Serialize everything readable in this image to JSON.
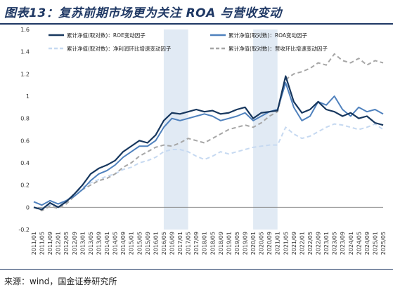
{
  "title": "图表13：复苏前期市场更为关注 ROA 与营收变动",
  "source": "来源：wind，国金证券研究所",
  "chart_data": {
    "type": "line",
    "ylim": [
      -0.2,
      1.6
    ],
    "yticks": [
      "-0.2",
      "0",
      "0.2",
      "0.4",
      "0.6",
      "0.8",
      "1",
      "1.2",
      "1.4",
      "1.6"
    ],
    "xticks": [
      "2011/01",
      "2011/05",
      "2011/09",
      "2012/01",
      "2012/05",
      "2012/09",
      "2013/01",
      "2013/05",
      "2013/09",
      "2014/01",
      "2014/05",
      "2014/09",
      "2015/01",
      "2015/05",
      "2015/09",
      "2016/01",
      "2016/05",
      "2016/09",
      "2017/01",
      "2017/05",
      "2017/09",
      "2018/01",
      "2018/05",
      "2018/09",
      "2019/01",
      "2019/05",
      "2019/09",
      "2020/01",
      "2020/05",
      "2020/09",
      "2021/01",
      "2021/05",
      "2021/09",
      "2022/01",
      "2022/05",
      "2022/09",
      "2023/01",
      "2023/05",
      "2023/09",
      "2024/01",
      "2024/05",
      "2024/09",
      "2025/01",
      "2025/05"
    ],
    "shaded_periods": [
      [
        "2016/05",
        "2017/05"
      ],
      [
        "2020/01",
        "2021/01"
      ]
    ],
    "legend_placement": "top",
    "series": [
      {
        "name": "累计净值(取对数)：ROE变动因子",
        "color": "#17375e",
        "style": "solid",
        "width": 2.2,
        "x": [
          "2011/01",
          "2011/05",
          "2011/09",
          "2012/01",
          "2012/05",
          "2012/09",
          "2013/01",
          "2013/05",
          "2013/09",
          "2014/01",
          "2014/05",
          "2014/09",
          "2015/01",
          "2015/05",
          "2015/09",
          "2016/01",
          "2016/05",
          "2016/09",
          "2017/01",
          "2017/05",
          "2017/09",
          "2018/01",
          "2018/05",
          "2018/09",
          "2019/01",
          "2019/05",
          "2019/09",
          "2020/01",
          "2020/05",
          "2020/09",
          "2021/01",
          "2021/05",
          "2021/09",
          "2022/01",
          "2022/05",
          "2022/09",
          "2023/01",
          "2023/05",
          "2023/09",
          "2024/01",
          "2024/05",
          "2024/09",
          "2025/01",
          "2025/05"
        ],
        "values": [
          0.0,
          -0.02,
          0.04,
          0.0,
          0.05,
          0.12,
          0.2,
          0.3,
          0.35,
          0.38,
          0.42,
          0.5,
          0.55,
          0.6,
          0.58,
          0.65,
          0.78,
          0.85,
          0.84,
          0.86,
          0.88,
          0.86,
          0.87,
          0.84,
          0.85,
          0.88,
          0.9,
          0.8,
          0.85,
          0.86,
          0.87,
          1.18,
          0.95,
          0.85,
          0.88,
          0.95,
          0.88,
          0.86,
          0.82,
          0.85,
          0.8,
          0.82,
          0.76,
          0.74
        ]
      },
      {
        "name": "累计净值(取对数)：ROA变动因子",
        "color": "#4f81bd",
        "style": "solid",
        "width": 2.0,
        "x": [
          "2011/01",
          "2011/05",
          "2011/09",
          "2012/01",
          "2012/05",
          "2012/09",
          "2013/01",
          "2013/05",
          "2013/09",
          "2014/01",
          "2014/05",
          "2014/09",
          "2015/01",
          "2015/05",
          "2015/09",
          "2016/01",
          "2016/05",
          "2016/09",
          "2017/01",
          "2017/05",
          "2017/09",
          "2018/01",
          "2018/05",
          "2018/09",
          "2019/01",
          "2019/05",
          "2019/09",
          "2020/01",
          "2020/05",
          "2020/09",
          "2021/01",
          "2021/05",
          "2021/09",
          "2022/01",
          "2022/05",
          "2022/09",
          "2023/01",
          "2023/05",
          "2023/09",
          "2024/01",
          "2024/05",
          "2024/09",
          "2025/01",
          "2025/05"
        ],
        "values": [
          0.05,
          0.02,
          0.06,
          0.03,
          0.06,
          0.1,
          0.16,
          0.24,
          0.3,
          0.33,
          0.38,
          0.45,
          0.5,
          0.55,
          0.55,
          0.6,
          0.72,
          0.8,
          0.78,
          0.8,
          0.82,
          0.84,
          0.82,
          0.78,
          0.8,
          0.82,
          0.85,
          0.78,
          0.82,
          0.86,
          0.88,
          1.12,
          0.9,
          0.78,
          0.82,
          0.95,
          0.92,
          1.0,
          0.88,
          0.82,
          0.9,
          0.86,
          0.88,
          0.84
        ]
      },
      {
        "name": "累计净值(取对数)：净利润环比增速变动因子",
        "color": "#c6d9f1",
        "style": "dashed",
        "width": 2.0,
        "x": [
          "2011/01",
          "2011/05",
          "2011/09",
          "2012/01",
          "2012/05",
          "2012/09",
          "2013/01",
          "2013/05",
          "2013/09",
          "2014/01",
          "2014/05",
          "2014/09",
          "2015/01",
          "2015/05",
          "2015/09",
          "2016/01",
          "2016/05",
          "2016/09",
          "2017/01",
          "2017/05",
          "2017/09",
          "2018/01",
          "2018/05",
          "2018/09",
          "2019/01",
          "2019/05",
          "2019/09",
          "2020/01",
          "2020/05",
          "2020/09",
          "2021/01",
          "2021/05",
          "2021/09",
          "2022/01",
          "2022/05",
          "2022/09",
          "2023/01",
          "2023/05",
          "2023/09",
          "2024/01",
          "2024/05",
          "2024/09",
          "2025/01",
          "2025/05"
        ],
        "values": [
          0.0,
          -0.01,
          0.02,
          0.01,
          0.06,
          0.12,
          0.18,
          0.22,
          0.25,
          0.28,
          0.3,
          0.34,
          0.36,
          0.4,
          0.42,
          0.45,
          0.5,
          0.52,
          0.52,
          0.5,
          0.46,
          0.43,
          0.46,
          0.5,
          0.48,
          0.5,
          0.52,
          0.54,
          0.55,
          0.56,
          0.56,
          0.72,
          0.66,
          0.62,
          0.64,
          0.68,
          0.72,
          0.75,
          0.74,
          0.72,
          0.7,
          0.72,
          0.75,
          0.7
        ]
      },
      {
        "name": "累计净值(取对数)：营收环比增速变动因子",
        "color": "#a6a6a6",
        "style": "dashed",
        "width": 2.0,
        "x": [
          "2011/01",
          "2011/05",
          "2011/09",
          "2012/01",
          "2012/05",
          "2012/09",
          "2013/01",
          "2013/05",
          "2013/09",
          "2014/01",
          "2014/05",
          "2014/09",
          "2015/01",
          "2015/05",
          "2015/09",
          "2016/01",
          "2016/05",
          "2016/09",
          "2017/01",
          "2017/05",
          "2017/09",
          "2018/01",
          "2018/05",
          "2018/09",
          "2019/01",
          "2019/05",
          "2019/09",
          "2020/01",
          "2020/05",
          "2020/09",
          "2021/01",
          "2021/05",
          "2021/09",
          "2022/01",
          "2022/05",
          "2022/09",
          "2023/01",
          "2023/05",
          "2023/09",
          "2024/01",
          "2024/05",
          "2024/09",
          "2025/01",
          "2025/05"
        ],
        "values": [
          0.0,
          -0.03,
          0.01,
          -0.01,
          0.03,
          0.1,
          0.16,
          0.2,
          0.24,
          0.26,
          0.3,
          0.36,
          0.4,
          0.46,
          0.5,
          0.54,
          0.56,
          0.55,
          0.58,
          0.62,
          0.6,
          0.58,
          0.62,
          0.66,
          0.7,
          0.72,
          0.74,
          0.72,
          0.76,
          0.82,
          0.86,
          1.15,
          1.2,
          1.22,
          1.25,
          1.3,
          1.28,
          1.38,
          1.32,
          1.3,
          1.34,
          1.28,
          1.32,
          1.3
        ]
      }
    ]
  }
}
